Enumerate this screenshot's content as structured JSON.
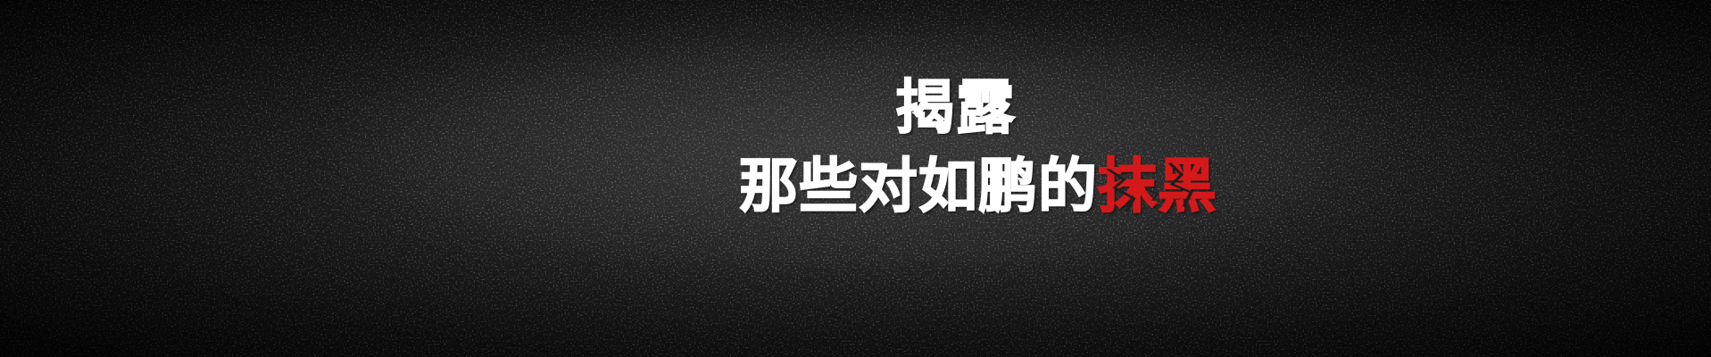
{
  "banner": {
    "title_line1": "揭露",
    "title_line2_prefix": "那些对如鹏的",
    "title_line2_accent": "抹黑"
  },
  "colors": {
    "background": "#1e1e1e",
    "text": "#ffffff",
    "accent": "#d4191b"
  }
}
